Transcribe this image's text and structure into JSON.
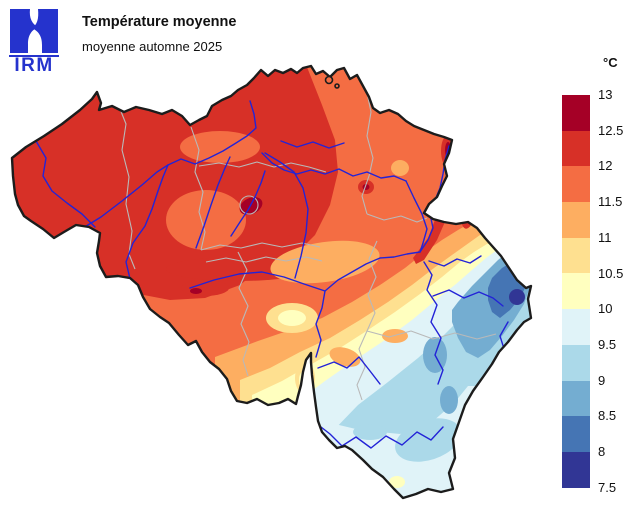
{
  "header": {
    "logo_text": "IRM",
    "logo_color": "#2533cd",
    "title": "Température moyenne",
    "subtitle": "moyenne automne 2025"
  },
  "legend": {
    "unit": "°C",
    "tick_labels": [
      "13",
      "12.5",
      "12",
      "11.5",
      "11",
      "10.5",
      "10",
      "9.5",
      "9",
      "8.5",
      "8",
      "7.5"
    ],
    "colors": [
      "#a50026",
      "#d73027",
      "#f46d43",
      "#fdae61",
      "#fee090",
      "#ffffbf",
      "#e0f3f8",
      "#abd9e9",
      "#74add1",
      "#4575b4",
      "#313695"
    ]
  },
  "map": {
    "country": "Belgique",
    "river_color": "#2323d7",
    "province_border_color": "#b9b9b9",
    "country_border_color": "#1c1c1c",
    "background_color": "#ffffff"
  }
}
